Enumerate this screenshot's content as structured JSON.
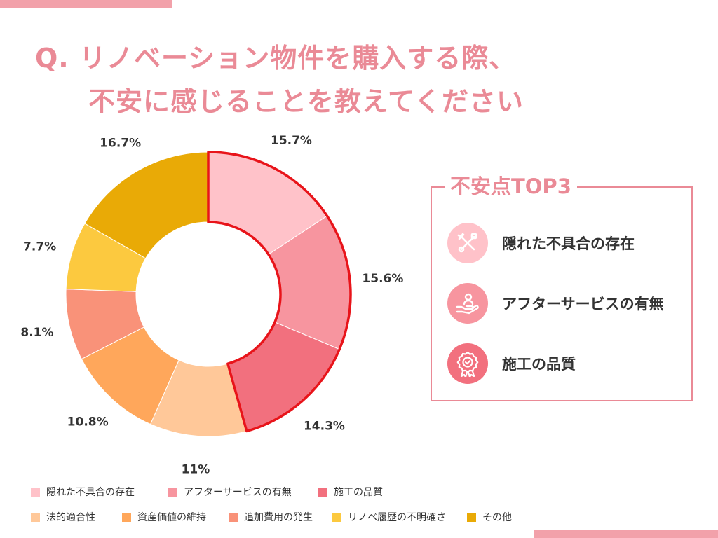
{
  "title": {
    "line1": "Q. リノベーション物件を購入する際、",
    "line2": "不安に感じることを教えてください"
  },
  "chart_data": {
    "type": "pie",
    "categories": [
      "隠れた不具合の存在",
      "アフターサービスの有無",
      "施工の品質",
      "法的適合性",
      "資産価値の維持",
      "追加費用の発生",
      "リノベ履歴の不明確さ",
      "その他"
    ],
    "values": [
      15.7,
      15.6,
      14.3,
      11,
      10.8,
      8.1,
      7.7,
      16.7
    ],
    "labels": [
      "15.7%",
      "15.6%",
      "14.3%",
      "11%",
      "10.8%",
      "8.1%",
      "7.7%",
      "16.7%"
    ],
    "colors": [
      "#ffc2c9",
      "#f7959f",
      "#f2707e",
      "#ffc899",
      "#ffa75b",
      "#f99279",
      "#fcc93f",
      "#e9aa06"
    ],
    "highlight": "top 3 segments outlined in red",
    "donut": true
  },
  "top3": {
    "title": "不安点TOP3",
    "items": [
      {
        "label": "隠れた不具合の存在",
        "icon": "tools-icon"
      },
      {
        "label": "アフターサービスの有無",
        "icon": "hand-person-icon"
      },
      {
        "label": "施工の品質",
        "icon": "quality-badge-icon"
      }
    ]
  },
  "colors": {
    "accent": "#ea8a96",
    "highlight_outline": "#e8141a"
  }
}
